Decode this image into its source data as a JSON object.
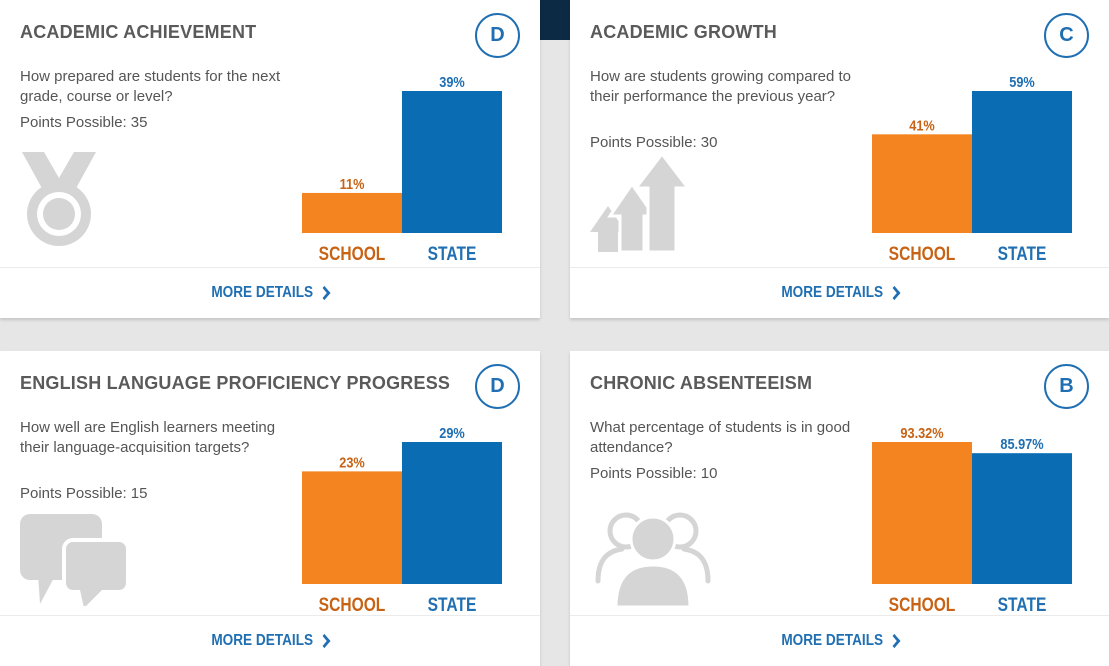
{
  "cards": [
    {
      "title": "ACADEMIC ACHIEVEMENT",
      "grade": "D",
      "question": "How prepared are students for the next grade, course or level?",
      "points_label": "Points Possible:",
      "points_value": "35",
      "icon": "medal-icon",
      "more_details": "MORE DETAILS"
    },
    {
      "title": "ACADEMIC GROWTH",
      "grade": "C",
      "question": "How are students growing compared to their performance the previous year?",
      "points_label": "Points Possible:",
      "points_value": "30",
      "icon": "growth-arrows-icon",
      "more_details": "MORE DETAILS"
    },
    {
      "title": "ENGLISH LANGUAGE PROFICIENCY PROGRESS",
      "grade": "D",
      "question": "How well are English learners meeting their language-acquisition targets?",
      "points_label": "Points Possible:",
      "points_value": "15",
      "icon": "speech-bubbles-icon",
      "more_details": "MORE DETAILS"
    },
    {
      "title": "CHRONIC ABSENTEEISM",
      "grade": "B",
      "question": "What percentage of students is in good attendance?",
      "points_label": "Points Possible:",
      "points_value": "10",
      "icon": "people-icon",
      "more_details": "MORE DETAILS"
    }
  ],
  "colors": {
    "school_bar": "#f48420",
    "school_text": "#c86315",
    "state_bar": "#0a6db4",
    "state_text": "#1f6fb2",
    "icon_gray": "#d5d5d5"
  },
  "chart_data": [
    {
      "type": "bar",
      "categories": [
        "SCHOOL",
        "STATE"
      ],
      "values": [
        11,
        39
      ],
      "value_labels": [
        "11%",
        "39%"
      ],
      "ylim": [
        0,
        39
      ]
    },
    {
      "type": "bar",
      "categories": [
        "SCHOOL",
        "STATE"
      ],
      "values": [
        41,
        59
      ],
      "value_labels": [
        "41%",
        "59%"
      ],
      "ylim": [
        0,
        59
      ]
    },
    {
      "type": "bar",
      "categories": [
        "SCHOOL",
        "STATE"
      ],
      "values": [
        23,
        29
      ],
      "value_labels": [
        "23%",
        "29%"
      ],
      "ylim": [
        0,
        29
      ]
    },
    {
      "type": "bar",
      "categories": [
        "SCHOOL",
        "STATE"
      ],
      "values": [
        93.32,
        85.97
      ],
      "value_labels": [
        "93.32%",
        "85.97%"
      ],
      "ylim": [
        0,
        93.32
      ]
    }
  ]
}
